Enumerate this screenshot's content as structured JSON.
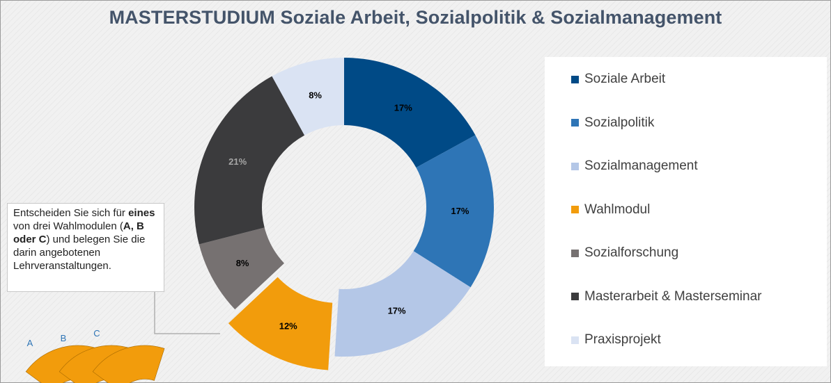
{
  "title": "MASTERSTUDIUM Soziale Arbeit, Sozialpolitik & Sozialmanagement",
  "chart_data": {
    "type": "donut",
    "title": "MASTERSTUDIUM Soziale Arbeit, Sozialpolitik & Sozialmanagement",
    "legend_position": "right",
    "series": [
      {
        "name": "Soziale Arbeit",
        "value": 17,
        "label": "17%",
        "color": "#004a86",
        "label_color": "#000000"
      },
      {
        "name": "Sozialpolitik",
        "value": 17,
        "label": "17%",
        "color": "#2e75b6",
        "label_color": "#000000"
      },
      {
        "name": "Sozialmanagement",
        "value": 17,
        "label": "17%",
        "color": "#b4c7e7",
        "label_color": "#000000"
      },
      {
        "name": "Wahlmodul",
        "value": 12,
        "label": "12%",
        "color": "#f29c0c",
        "label_color": "#000000",
        "exploded": true
      },
      {
        "name": "Sozialforschung",
        "value": 8,
        "label": "8%",
        "color": "#767171",
        "label_color": "#000000"
      },
      {
        "name": "Masterarbeit & Masterseminar",
        "value": 21,
        "label": "21%",
        "color": "#3b3b3d",
        "label_color": "#a6a6a6"
      },
      {
        "name": "Praxisprojekt",
        "value": 8,
        "label": "8%",
        "color": "#dae3f3",
        "label_color": "#000000"
      }
    ]
  },
  "callout": {
    "line1": "Entscheiden Sie sich für",
    "bold1": "eines",
    "line2": " von drei Wahlmodulen  (",
    "bold2": "A, B oder C",
    "line3": ") und belegen Sie die darin angebotenen Lehrveranstaltungen."
  },
  "modules": [
    {
      "label": "A",
      "color": "#f29c0c",
      "text_color": "#2e75b6"
    },
    {
      "label": "B",
      "color": "#f29c0c",
      "text_color": "#2e75b6"
    },
    {
      "label": "C",
      "color": "#f29c0c",
      "text_color": "#2e75b6"
    }
  ]
}
